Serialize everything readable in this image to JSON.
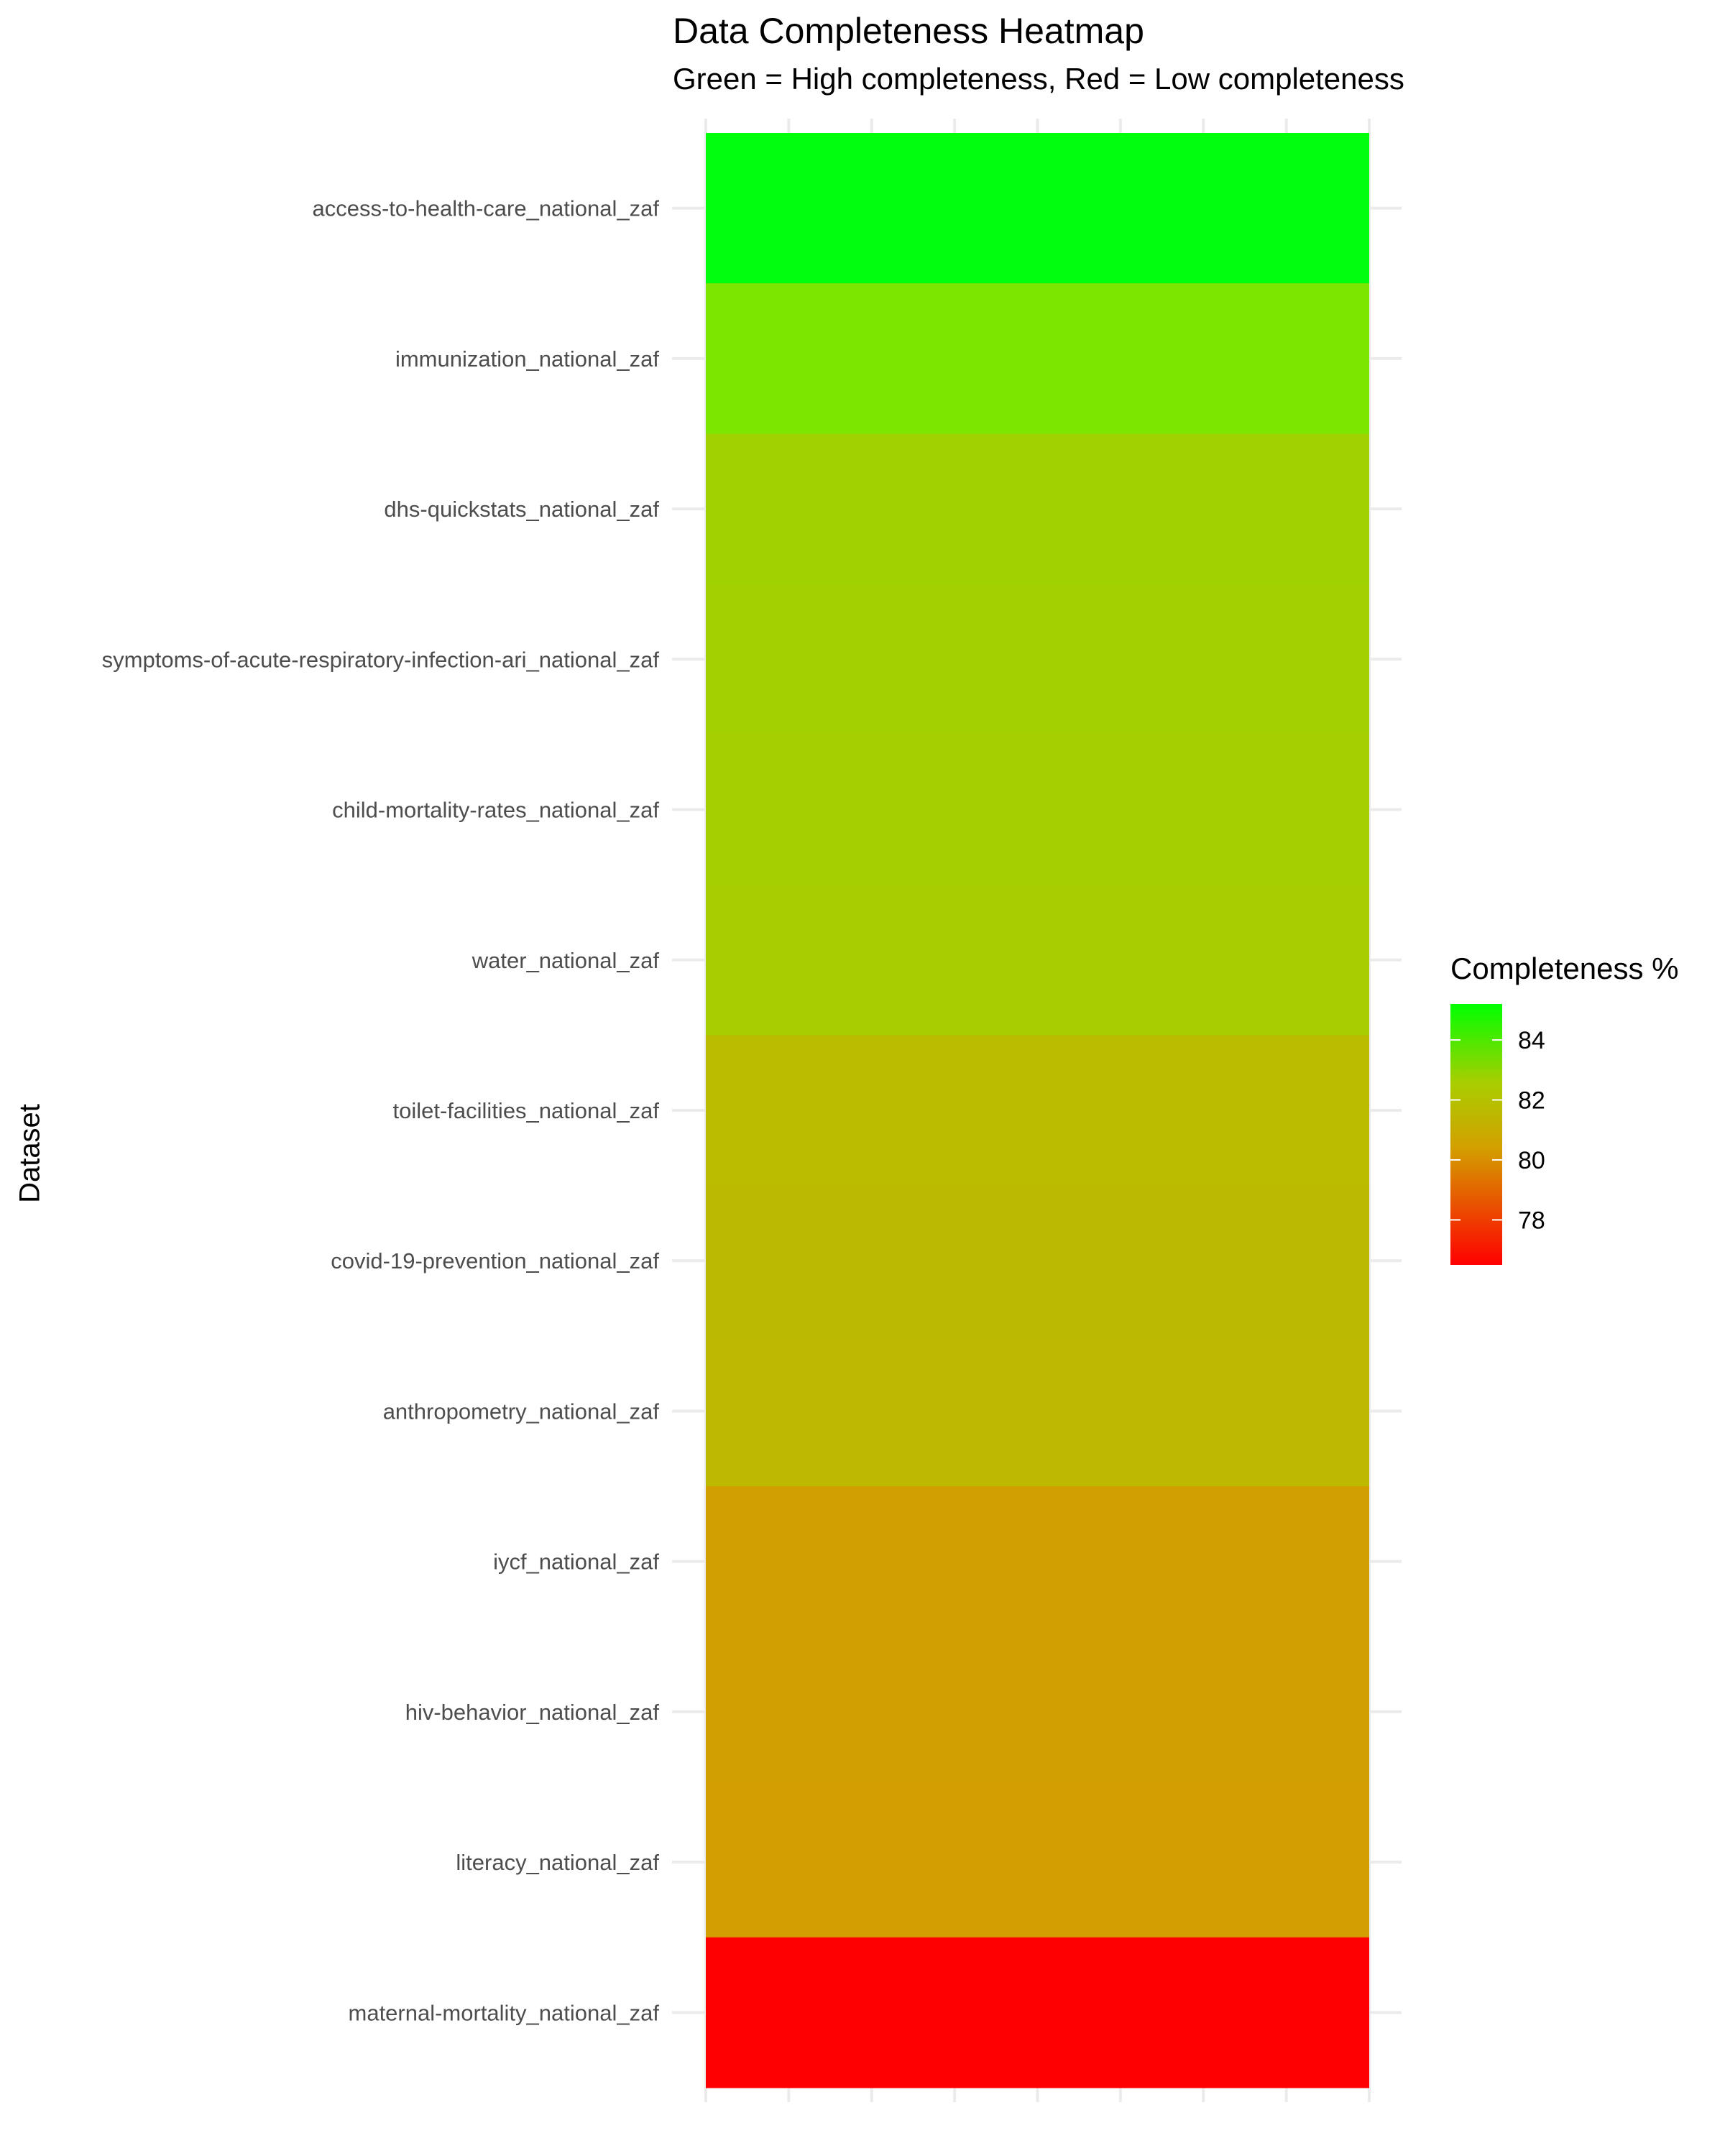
{
  "chart_data": {
    "type": "heatmap",
    "title": "Data Completeness Heatmap",
    "subtitle": "Green = High completeness, Red = Low completeness",
    "xlabel": "",
    "ylabel": "Dataset",
    "categories": [
      "access-to-health-care_national_zaf",
      "immunization_national_zaf",
      "dhs-quickstats_national_zaf",
      "symptoms-of-acute-respiratory-infection-ari_national_zaf",
      "child-mortality-rates_national_zaf",
      "water_national_zaf",
      "toilet-facilities_national_zaf",
      "covid-19-prevention_national_zaf",
      "anthropometry_national_zaf",
      "iycf_national_zaf",
      "hiv-behavior_national_zaf",
      "literacy_national_zaf",
      "maternal-mortality_national_zaf"
    ],
    "values": [
      85.2,
      83.7,
      82.5,
      82.5,
      82.5,
      82.5,
      81.5,
      81.5,
      81.5,
      80.4,
      80.4,
      80.4,
      76.5
    ],
    "legend": {
      "title": "Completeness %",
      "placement": "right",
      "range": [
        76.5,
        85.2
      ],
      "ticks": [
        84,
        82,
        80,
        78
      ],
      "low_color": "#ff0000",
      "high_color": "#00ff00"
    },
    "colors": [
      "#00ff0c",
      "#7ce600",
      "#9fd200",
      "#a3d000",
      "#a5cf00",
      "#a6ce00",
      "#bbbb00",
      "#bcba00",
      "#bdb900",
      "#d1a000",
      "#d19f00",
      "#d29e00",
      "#ff0000"
    ],
    "grid": true
  }
}
